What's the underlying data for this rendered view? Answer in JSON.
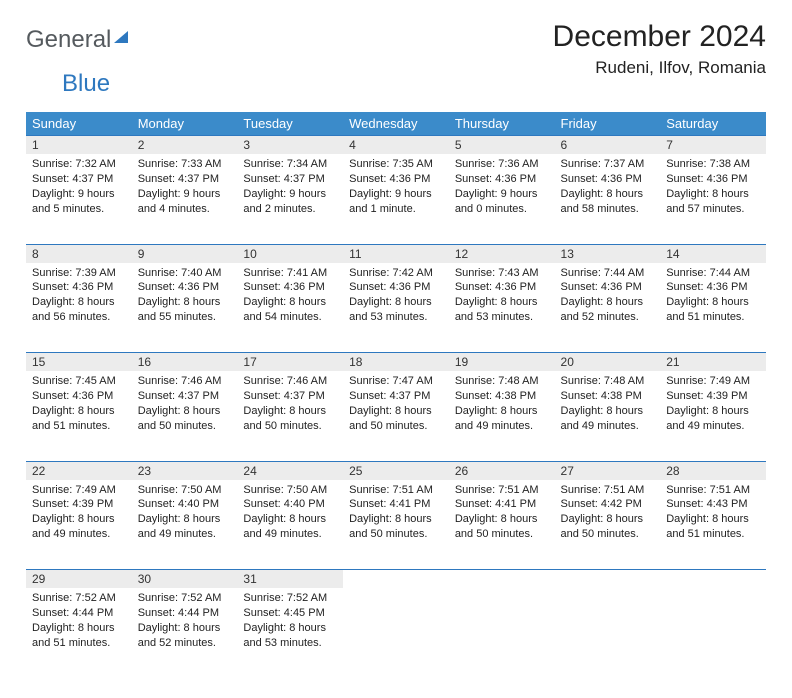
{
  "logo": {
    "text1": "General",
    "text2": "Blue"
  },
  "title": "December 2024",
  "location": "Rudeni, Ilfov, Romania",
  "day_headers": [
    "Sunday",
    "Monday",
    "Tuesday",
    "Wednesday",
    "Thursday",
    "Friday",
    "Saturday"
  ],
  "colors": {
    "header_bg": "#3b8bca",
    "header_text": "#ffffff",
    "daynum_bg": "#ececec",
    "rule": "#2e78bf",
    "logo_gray": "#555a5e",
    "logo_blue": "#2e78bf"
  },
  "weeks": [
    [
      {
        "n": "1",
        "sunrise": "Sunrise: 7:32 AM",
        "sunset": "Sunset: 4:37 PM",
        "daylight": "Daylight: 9 hours and 5 minutes."
      },
      {
        "n": "2",
        "sunrise": "Sunrise: 7:33 AM",
        "sunset": "Sunset: 4:37 PM",
        "daylight": "Daylight: 9 hours and 4 minutes."
      },
      {
        "n": "3",
        "sunrise": "Sunrise: 7:34 AM",
        "sunset": "Sunset: 4:37 PM",
        "daylight": "Daylight: 9 hours and 2 minutes."
      },
      {
        "n": "4",
        "sunrise": "Sunrise: 7:35 AM",
        "sunset": "Sunset: 4:36 PM",
        "daylight": "Daylight: 9 hours and 1 minute."
      },
      {
        "n": "5",
        "sunrise": "Sunrise: 7:36 AM",
        "sunset": "Sunset: 4:36 PM",
        "daylight": "Daylight: 9 hours and 0 minutes."
      },
      {
        "n": "6",
        "sunrise": "Sunrise: 7:37 AM",
        "sunset": "Sunset: 4:36 PM",
        "daylight": "Daylight: 8 hours and 58 minutes."
      },
      {
        "n": "7",
        "sunrise": "Sunrise: 7:38 AM",
        "sunset": "Sunset: 4:36 PM",
        "daylight": "Daylight: 8 hours and 57 minutes."
      }
    ],
    [
      {
        "n": "8",
        "sunrise": "Sunrise: 7:39 AM",
        "sunset": "Sunset: 4:36 PM",
        "daylight": "Daylight: 8 hours and 56 minutes."
      },
      {
        "n": "9",
        "sunrise": "Sunrise: 7:40 AM",
        "sunset": "Sunset: 4:36 PM",
        "daylight": "Daylight: 8 hours and 55 minutes."
      },
      {
        "n": "10",
        "sunrise": "Sunrise: 7:41 AM",
        "sunset": "Sunset: 4:36 PM",
        "daylight": "Daylight: 8 hours and 54 minutes."
      },
      {
        "n": "11",
        "sunrise": "Sunrise: 7:42 AM",
        "sunset": "Sunset: 4:36 PM",
        "daylight": "Daylight: 8 hours and 53 minutes."
      },
      {
        "n": "12",
        "sunrise": "Sunrise: 7:43 AM",
        "sunset": "Sunset: 4:36 PM",
        "daylight": "Daylight: 8 hours and 53 minutes."
      },
      {
        "n": "13",
        "sunrise": "Sunrise: 7:44 AM",
        "sunset": "Sunset: 4:36 PM",
        "daylight": "Daylight: 8 hours and 52 minutes."
      },
      {
        "n": "14",
        "sunrise": "Sunrise: 7:44 AM",
        "sunset": "Sunset: 4:36 PM",
        "daylight": "Daylight: 8 hours and 51 minutes."
      }
    ],
    [
      {
        "n": "15",
        "sunrise": "Sunrise: 7:45 AM",
        "sunset": "Sunset: 4:36 PM",
        "daylight": "Daylight: 8 hours and 51 minutes."
      },
      {
        "n": "16",
        "sunrise": "Sunrise: 7:46 AM",
        "sunset": "Sunset: 4:37 PM",
        "daylight": "Daylight: 8 hours and 50 minutes."
      },
      {
        "n": "17",
        "sunrise": "Sunrise: 7:46 AM",
        "sunset": "Sunset: 4:37 PM",
        "daylight": "Daylight: 8 hours and 50 minutes."
      },
      {
        "n": "18",
        "sunrise": "Sunrise: 7:47 AM",
        "sunset": "Sunset: 4:37 PM",
        "daylight": "Daylight: 8 hours and 50 minutes."
      },
      {
        "n": "19",
        "sunrise": "Sunrise: 7:48 AM",
        "sunset": "Sunset: 4:38 PM",
        "daylight": "Daylight: 8 hours and 49 minutes."
      },
      {
        "n": "20",
        "sunrise": "Sunrise: 7:48 AM",
        "sunset": "Sunset: 4:38 PM",
        "daylight": "Daylight: 8 hours and 49 minutes."
      },
      {
        "n": "21",
        "sunrise": "Sunrise: 7:49 AM",
        "sunset": "Sunset: 4:39 PM",
        "daylight": "Daylight: 8 hours and 49 minutes."
      }
    ],
    [
      {
        "n": "22",
        "sunrise": "Sunrise: 7:49 AM",
        "sunset": "Sunset: 4:39 PM",
        "daylight": "Daylight: 8 hours and 49 minutes."
      },
      {
        "n": "23",
        "sunrise": "Sunrise: 7:50 AM",
        "sunset": "Sunset: 4:40 PM",
        "daylight": "Daylight: 8 hours and 49 minutes."
      },
      {
        "n": "24",
        "sunrise": "Sunrise: 7:50 AM",
        "sunset": "Sunset: 4:40 PM",
        "daylight": "Daylight: 8 hours and 49 minutes."
      },
      {
        "n": "25",
        "sunrise": "Sunrise: 7:51 AM",
        "sunset": "Sunset: 4:41 PM",
        "daylight": "Daylight: 8 hours and 50 minutes."
      },
      {
        "n": "26",
        "sunrise": "Sunrise: 7:51 AM",
        "sunset": "Sunset: 4:41 PM",
        "daylight": "Daylight: 8 hours and 50 minutes."
      },
      {
        "n": "27",
        "sunrise": "Sunrise: 7:51 AM",
        "sunset": "Sunset: 4:42 PM",
        "daylight": "Daylight: 8 hours and 50 minutes."
      },
      {
        "n": "28",
        "sunrise": "Sunrise: 7:51 AM",
        "sunset": "Sunset: 4:43 PM",
        "daylight": "Daylight: 8 hours and 51 minutes."
      }
    ],
    [
      {
        "n": "29",
        "sunrise": "Sunrise: 7:52 AM",
        "sunset": "Sunset: 4:44 PM",
        "daylight": "Daylight: 8 hours and 51 minutes."
      },
      {
        "n": "30",
        "sunrise": "Sunrise: 7:52 AM",
        "sunset": "Sunset: 4:44 PM",
        "daylight": "Daylight: 8 hours and 52 minutes."
      },
      {
        "n": "31",
        "sunrise": "Sunrise: 7:52 AM",
        "sunset": "Sunset: 4:45 PM",
        "daylight": "Daylight: 8 hours and 53 minutes."
      },
      null,
      null,
      null,
      null
    ]
  ]
}
